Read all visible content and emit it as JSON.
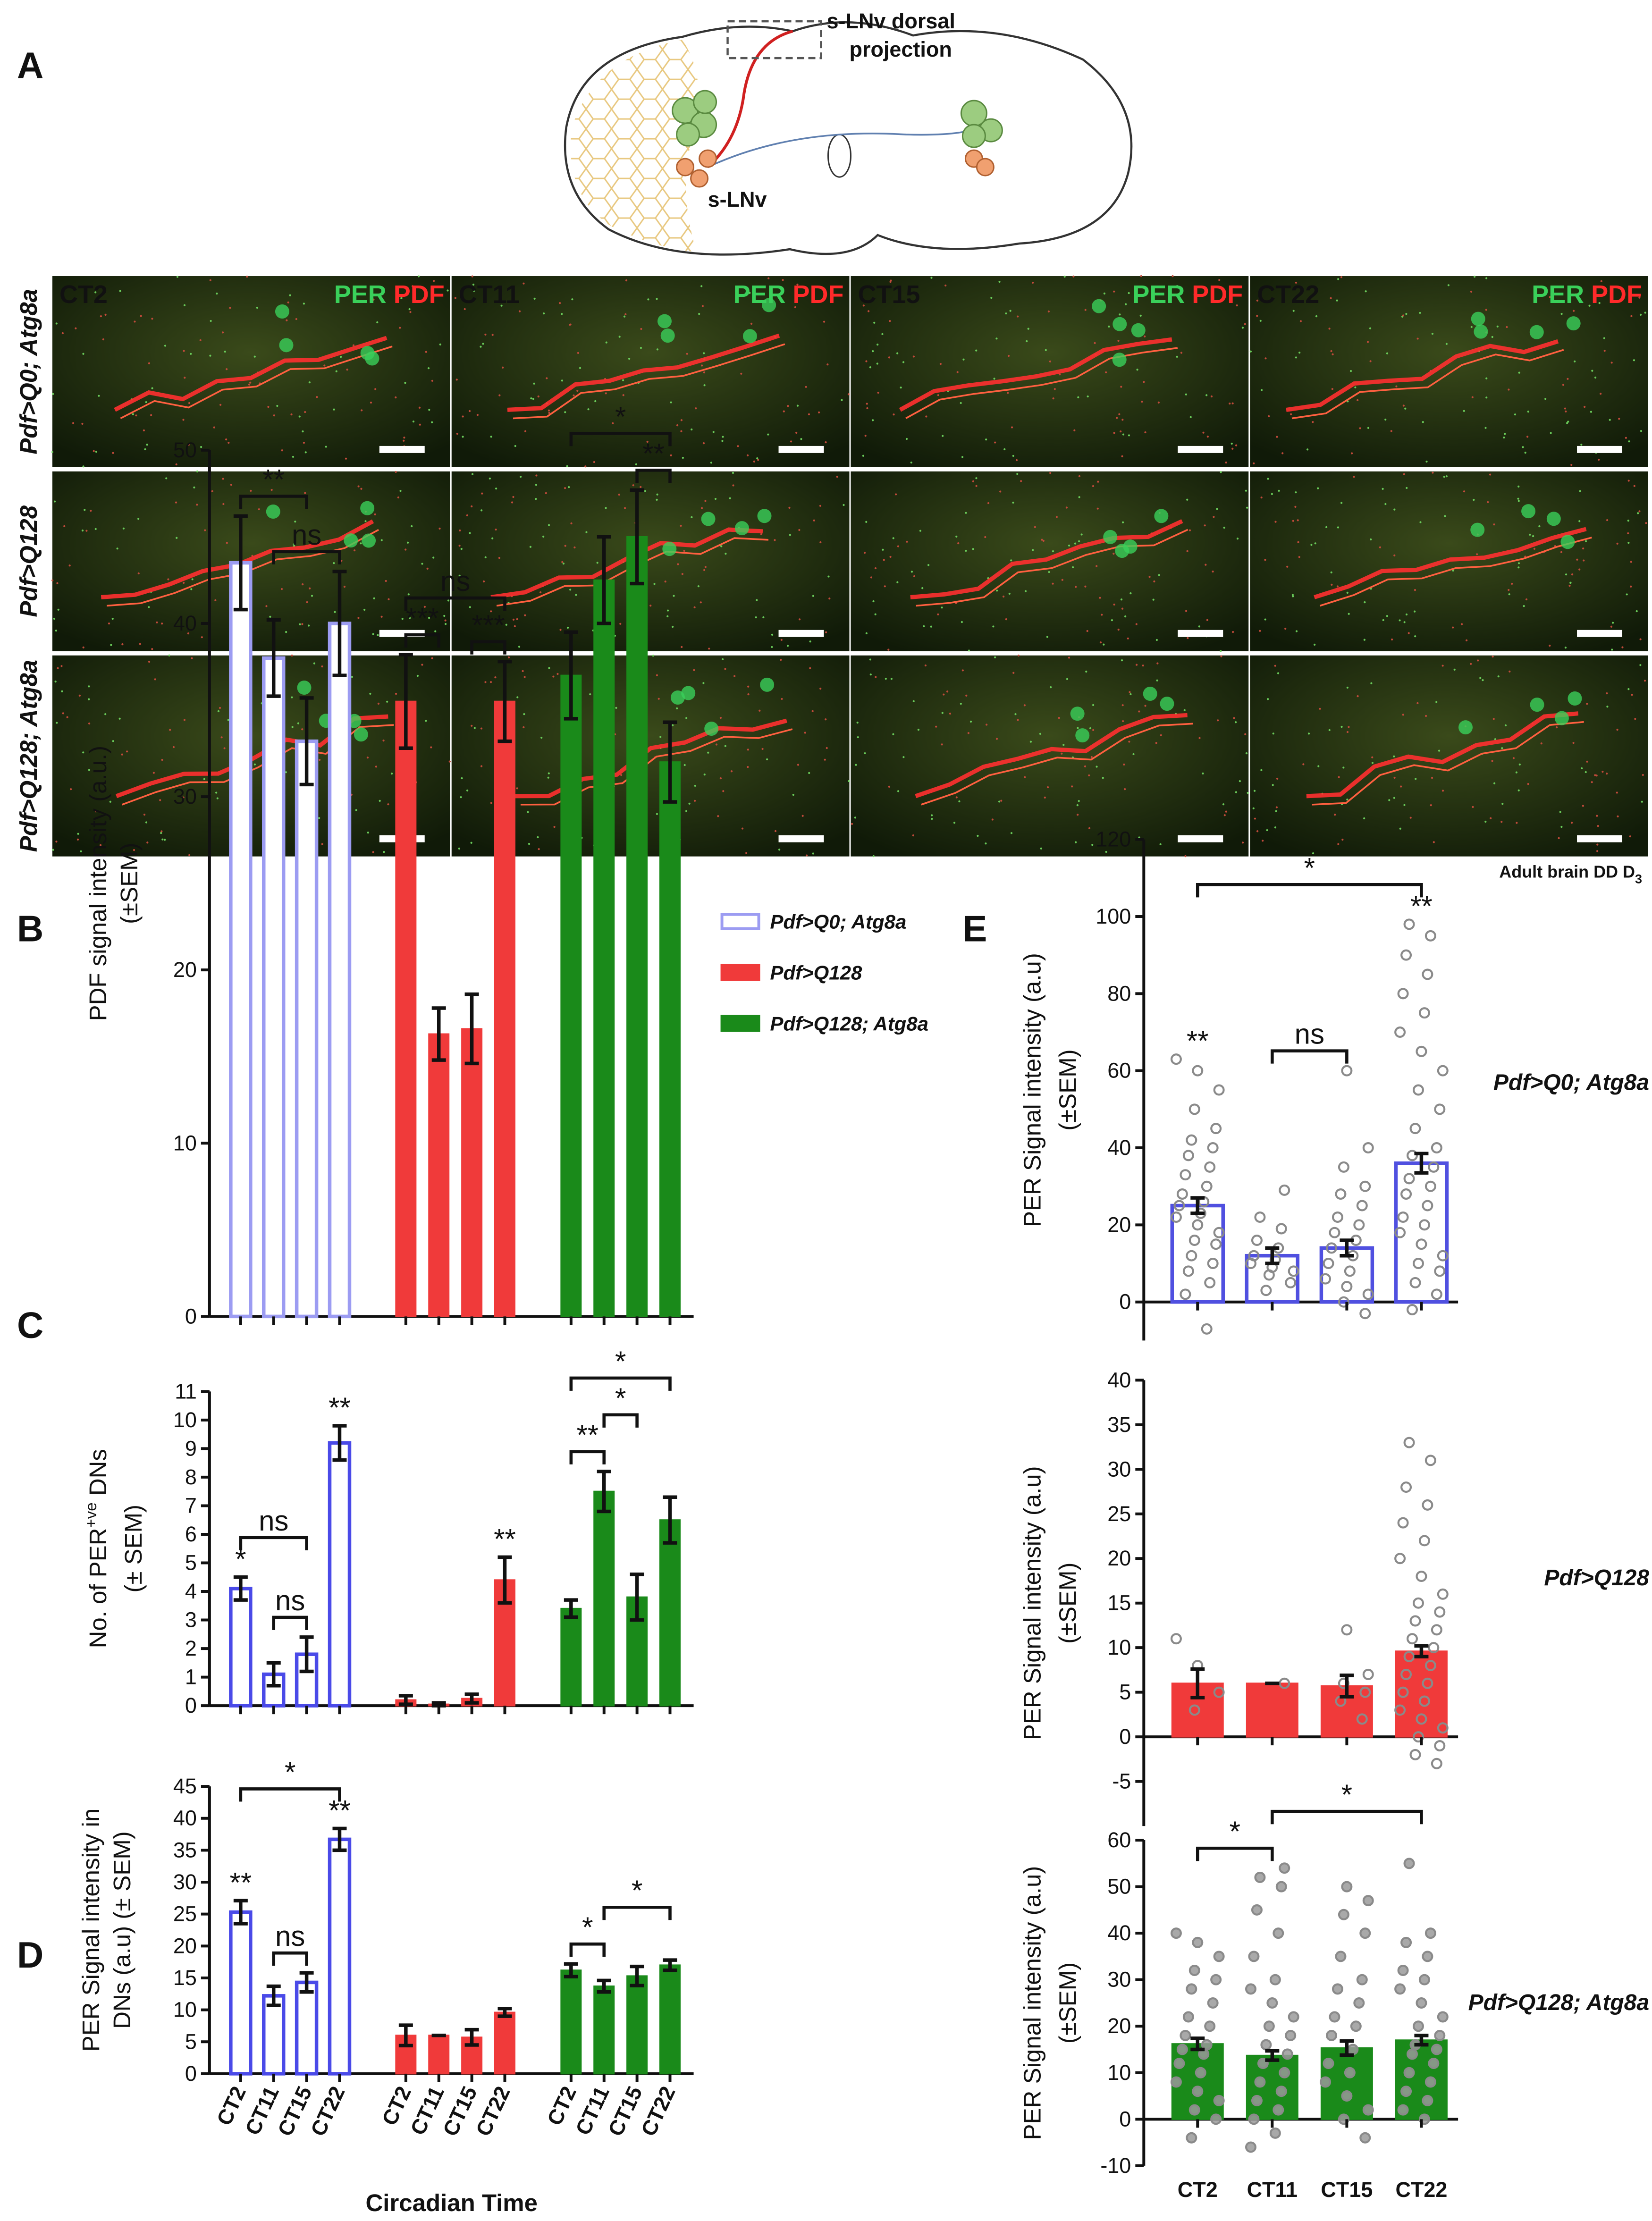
{
  "panel_labels": [
    "A",
    "B",
    "C",
    "D",
    "E"
  ],
  "diagram": {
    "labels": [
      "s-LNv dorsal",
      "projection",
      "s-LNv"
    ]
  },
  "micrographs": {
    "columns": [
      "CT2",
      "CT11",
      "CT15",
      "CT22"
    ],
    "stain_labels": [
      "PER",
      "PDF"
    ],
    "rows": [
      "Pdf>Q0; Atg8a",
      "Pdf>Q128",
      "Pdf>Q128; Atg8a"
    ],
    "caption": "Adult brain DD D",
    "caption_subscript": "3"
  },
  "chart_data": [
    {
      "type": "bar",
      "ylabel": [
        "PDF signal intensity (a.u.)",
        "(±SEM)"
      ],
      "ylim": [
        0,
        50
      ],
      "yticks": [
        0,
        10,
        20,
        30,
        40,
        50
      ],
      "legend": true,
      "series": [
        {
          "name": "Pdf>Q0; Atg8a",
          "color": "#9c9cf2",
          "hollow": true,
          "values": [
            43.5,
            38,
            33.2,
            40
          ],
          "errors": [
            2.7,
            2.2,
            2.5,
            3
          ]
        },
        {
          "name": "Pdf>Q128",
          "color": "#f03a3a",
          "values": [
            35.5,
            16.3,
            16.6,
            35.5
          ],
          "errors": [
            2.7,
            1.5,
            2,
            2.3
          ]
        },
        {
          "name": "Pdf>Q128; Atg8a",
          "color": "#1a8a1a",
          "values": [
            37,
            42.5,
            45,
            32
          ],
          "errors": [
            2.5,
            2.5,
            2.7,
            2.3
          ]
        }
      ],
      "stars": [],
      "brackets": [
        {
          "text": "ns",
          "series": 0,
          "from": 1,
          "to": 3
        },
        {
          "text": "**",
          "series": 0,
          "from": 0,
          "to": 2
        },
        {
          "text": "***",
          "series": 1,
          "from": 0,
          "to": 1
        },
        {
          "text": "***",
          "series": 1,
          "from": 2,
          "to": 3
        },
        {
          "text": "ns",
          "series": 1,
          "from": 0,
          "to": 3
        },
        {
          "text": "**",
          "series": 2,
          "from": 2,
          "to": 3
        },
        {
          "text": "*",
          "series": 2,
          "from": 0,
          "to": 3
        }
      ]
    },
    {
      "type": "bar",
      "ylabel": [
        "No. of PER",
        "(± SEM)"
      ],
      "ylabel_sup": "+ve",
      "ylabel_tail": " DNs",
      "ylim": [
        0,
        11
      ],
      "yticks": [
        0,
        1,
        2,
        3,
        4,
        5,
        6,
        7,
        8,
        9,
        10,
        11
      ],
      "series": [
        {
          "color": "#4a4ae8",
          "hollow": true,
          "values": [
            4.1,
            1.1,
            1.8,
            9.2
          ],
          "errors": [
            0.4,
            0.4,
            0.6,
            0.6
          ]
        },
        {
          "color": "#f03a3a",
          "values": [
            0.2,
            0.05,
            0.25,
            4.4
          ],
          "errors": [
            0.15,
            0.05,
            0.15,
            0.8
          ]
        },
        {
          "color": "#1a8a1a",
          "values": [
            3.4,
            7.5,
            3.8,
            6.5
          ],
          "errors": [
            0.3,
            0.7,
            0.8,
            0.8
          ]
        }
      ],
      "stars": [
        {
          "text": "*",
          "series": 0,
          "index": 0
        },
        {
          "text": "**",
          "series": 0,
          "index": 3
        },
        {
          "text": "**",
          "series": 1,
          "index": 3
        }
      ],
      "brackets": [
        {
          "text": "ns",
          "series": 0,
          "from": 1,
          "to": 2
        },
        {
          "text": "ns",
          "series": 0,
          "from": 0,
          "to": 2
        },
        {
          "text": "**",
          "series": 2,
          "from": 0,
          "to": 1
        },
        {
          "text": "*",
          "series": 2,
          "from": 1,
          "to": 2
        },
        {
          "text": "*",
          "series": 2,
          "from": 0,
          "to": 3
        }
      ]
    },
    {
      "type": "bar",
      "ylabel": [
        "PER Signal intensity in",
        "DNs (a.u) (± SEM)"
      ],
      "xlabel": "Circadian Time",
      "categories": [
        "CT2",
        "CT11",
        "CT15",
        "CT22"
      ],
      "ylim": [
        0,
        45
      ],
      "yticks": [
        0,
        5,
        10,
        15,
        20,
        25,
        30,
        35,
        40,
        45
      ],
      "series": [
        {
          "color": "#4a4ae8",
          "hollow": true,
          "values": [
            25.3,
            12.2,
            14.3,
            36.7
          ],
          "errors": [
            1.8,
            1.5,
            1.5,
            1.7
          ]
        },
        {
          "color": "#f03a3a",
          "values": [
            6,
            6,
            5.7,
            9.6
          ],
          "errors": [
            1.6,
            0,
            1.2,
            0.6
          ]
        },
        {
          "color": "#1a8a1a",
          "values": [
            16.2,
            13.7,
            15.3,
            17
          ],
          "errors": [
            1,
            0.9,
            1.5,
            0.8
          ]
        }
      ],
      "stars": [
        {
          "text": "**",
          "series": 0,
          "index": 0
        },
        {
          "text": "**",
          "series": 0,
          "index": 3
        }
      ],
      "brackets": [
        {
          "text": "ns",
          "series": 0,
          "from": 1,
          "to": 2
        },
        {
          "text": "*",
          "series": 0,
          "from": 0,
          "to": 3
        },
        {
          "text": "*",
          "series": 2,
          "from": 0,
          "to": 1
        },
        {
          "text": "*",
          "series": 2,
          "from": 1,
          "to": 3
        }
      ]
    },
    {
      "type": "bar_scatter",
      "label": "Pdf>Q0; Atg8a",
      "ylabel": [
        "PER Signal intensity (a.u)",
        "(±SEM)"
      ],
      "ylim": [
        -10,
        120
      ],
      "yticks": [
        0,
        20,
        40,
        60,
        80,
        100,
        120
      ],
      "color": "#5050e0",
      "hollow": true,
      "values": [
        25,
        12,
        14,
        36
      ],
      "errors": [
        2,
        2,
        2,
        2.5
      ],
      "points": [
        [
          63,
          60,
          55,
          50,
          45,
          42,
          40,
          38,
          35,
          33,
          30,
          28,
          26,
          25,
          23,
          22,
          20,
          18,
          16,
          15,
          12,
          10,
          8,
          5,
          2,
          -7
        ],
        [
          29,
          22,
          19,
          16,
          14,
          12,
          11,
          10,
          9,
          8,
          7,
          5,
          3
        ],
        [
          60,
          40,
          35,
          30,
          28,
          25,
          22,
          20,
          18,
          16,
          14,
          12,
          10,
          8,
          6,
          4,
          2,
          0,
          -3
        ],
        [
          98,
          95,
          90,
          85,
          80,
          75,
          70,
          65,
          60,
          55,
          50,
          45,
          40,
          38,
          35,
          32,
          30,
          28,
          25,
          22,
          20,
          18,
          15,
          12,
          10,
          8,
          5,
          2,
          -2
        ]
      ],
      "stars": [
        {
          "text": "**",
          "index": 0
        },
        {
          "text": "**",
          "index": 3
        }
      ],
      "brackets": [
        {
          "text": "ns",
          "from": 1,
          "to": 2
        },
        {
          "text": "*",
          "from": 0,
          "to": 3
        }
      ]
    },
    {
      "type": "bar_scatter",
      "label": "Pdf>Q128",
      "ylabel": [
        "PER Signal intensity (a.u)",
        "(±SEM)"
      ],
      "ylim": [
        -10,
        40
      ],
      "yticks": [
        -5,
        0,
        5,
        10,
        15,
        20,
        25,
        30,
        35,
        40
      ],
      "color": "#f03a3a",
      "values": [
        6,
        6,
        5.7,
        9.6
      ],
      "errors": [
        1.6,
        0,
        1.2,
        0.6
      ],
      "points": [
        [
          11,
          8,
          5,
          3
        ],
        [
          6
        ],
        [
          12,
          7,
          6,
          5,
          4,
          2
        ],
        [
          33,
          31,
          28,
          26,
          24,
          22,
          20,
          18,
          16,
          15,
          14,
          13,
          12,
          11,
          10,
          9,
          8,
          7,
          6,
          5,
          4,
          3,
          2,
          1,
          0,
          -1,
          -2,
          -3
        ]
      ],
      "stars": [],
      "brackets": []
    },
    {
      "type": "bar_scatter",
      "label": "Pdf>Q128; Atg8a",
      "ylabel": [
        "PER Signal intensity (a.u)",
        "(±SEM)"
      ],
      "categories": [
        "CT2",
        "CT11",
        "CT15",
        "CT22"
      ],
      "ylim": [
        -10,
        60
      ],
      "yticks": [
        -10,
        0,
        10,
        20,
        30,
        40,
        50,
        60
      ],
      "color": "#1a8a1a",
      "filled_points": true,
      "values": [
        16.2,
        13.7,
        15.3,
        17
      ],
      "errors": [
        1.2,
        1,
        1.5,
        1
      ],
      "points": [
        [
          40,
          38,
          35,
          32,
          30,
          28,
          25,
          22,
          20,
          18,
          16,
          15,
          14,
          12,
          10,
          8,
          6,
          4,
          2,
          0,
          -4
        ],
        [
          54,
          52,
          50,
          45,
          40,
          35,
          30,
          28,
          25,
          22,
          20,
          18,
          16,
          14,
          12,
          10,
          8,
          6,
          4,
          2,
          0,
          -3,
          -6
        ],
        [
          50,
          47,
          44,
          40,
          35,
          30,
          28,
          25,
          22,
          20,
          18,
          15,
          12,
          10,
          8,
          5,
          2,
          0,
          -4
        ],
        [
          55,
          40,
          38,
          35,
          32,
          30,
          28,
          25,
          22,
          20,
          18,
          16,
          15,
          14,
          12,
          10,
          8,
          6,
          4,
          2,
          0
        ]
      ],
      "stars": [],
      "brackets": [
        {
          "text": "*",
          "from": 0,
          "to": 1
        },
        {
          "text": "*",
          "from": 1,
          "to": 3
        }
      ]
    }
  ]
}
